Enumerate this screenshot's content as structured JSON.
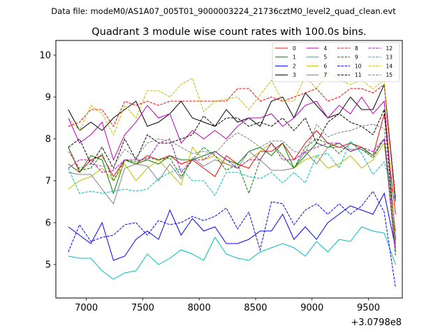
{
  "header": {
    "suptitle": "Data file: modeM0/AS1A07_005T01_9000003224_21736cztM0_level2_quad_clean.evt"
  },
  "chart_data": {
    "type": "line",
    "title": "Quadrant 3 module wise count rates with 100.0s bins.",
    "xlabel": "",
    "ylabel": "",
    "x_offset_label": "+3.0798e8",
    "x_offset": 307980000,
    "xlim": [
      6730,
      9800
    ],
    "ylim": [
      4.2,
      10.35
    ],
    "x_ticks": [
      7000,
      7500,
      8000,
      8500,
      9000,
      9500
    ],
    "x_tick_labels": [
      "7000",
      "7500",
      "8000",
      "8500",
      "9000",
      "9500"
    ],
    "y_ticks": [
      5,
      6,
      7,
      8,
      9,
      10
    ],
    "y_tick_labels": [
      "5",
      "6",
      "7",
      "8",
      "9",
      "10"
    ],
    "grid": false,
    "legend_position": "top-right",
    "legend_columns": 4,
    "x": [
      6840,
      6940,
      7040,
      7140,
      7240,
      7340,
      7440,
      7540,
      7640,
      7740,
      7840,
      7940,
      8040,
      8140,
      8240,
      8340,
      8440,
      8540,
      8640,
      8740,
      8840,
      8940,
      9040,
      9140,
      9240,
      9340,
      9440,
      9540,
      9640,
      9740
    ],
    "series": [
      {
        "name": "0",
        "color": "#ff0000",
        "dash": "solid",
        "values": [
          7.8,
          7.2,
          7.5,
          7.6,
          7.1,
          7.5,
          7.4,
          7.6,
          7.5,
          7.6,
          7.4,
          7.5,
          7.3,
          7.1,
          7.6,
          7.4,
          7.3,
          7.7,
          7.7,
          7.9,
          7.5,
          7.9,
          8.2,
          7.9,
          7.8,
          7.9,
          7.8,
          7.6,
          8.6,
          6.2
        ]
      },
      {
        "name": "1",
        "color": "#008000",
        "dash": "solid",
        "values": [
          7.4,
          7.2,
          7.6,
          7.5,
          6.7,
          7.5,
          7.4,
          7.5,
          7.4,
          7.6,
          7.5,
          7.5,
          7.6,
          7.7,
          7.5,
          7.4,
          7.7,
          7.8,
          7.6,
          7.9,
          7.3,
          7.6,
          7.9,
          7.8,
          7.9,
          7.7,
          7.8,
          7.6,
          8.0,
          5.3
        ]
      },
      {
        "name": "2",
        "color": "#0000ff",
        "dash": "solid",
        "values": [
          5.9,
          5.7,
          5.5,
          6.0,
          5.1,
          5.2,
          5.6,
          5.8,
          5.6,
          6.3,
          5.7,
          6.1,
          5.8,
          5.9,
          5.5,
          5.5,
          5.6,
          5.8,
          5.8,
          6.2,
          5.6,
          5.9,
          5.6,
          6.0,
          6.2,
          6.4,
          6.3,
          6.2,
          6.7,
          5.4
        ]
      },
      {
        "name": "3",
        "color": "#000000",
        "dash": "solid",
        "values": [
          8.7,
          8.2,
          8.4,
          8.2,
          8.5,
          8.7,
          8.9,
          8.3,
          8.4,
          8.6,
          8.9,
          8.5,
          8.4,
          8.3,
          8.7,
          8.4,
          8.5,
          8.3,
          8.9,
          9.0,
          8.5,
          9.1,
          8.8,
          8.5,
          8.6,
          9.0,
          8.7,
          8.7,
          9.3,
          6.5
        ]
      },
      {
        "name": "4",
        "color": "#bf00bf",
        "dash": "solid",
        "values": [
          8.5,
          7.9,
          8.1,
          8.4,
          7.5,
          8.1,
          8.4,
          8.8,
          8.5,
          8.6,
          7.9,
          8.2,
          8.0,
          8.2,
          8.0,
          8.3,
          8.5,
          8.5,
          8.6,
          8.3,
          8.5,
          8.8,
          8.9,
          8.5,
          8.8,
          8.6,
          9.0,
          8.6,
          8.9,
          5.6
        ]
      },
      {
        "name": "5",
        "color": "#00bfbf",
        "dash": "solid",
        "values": [
          5.2,
          5.15,
          5.15,
          4.85,
          4.65,
          4.8,
          4.85,
          5.25,
          5.0,
          5.15,
          5.35,
          5.25,
          5.1,
          5.65,
          5.25,
          5.15,
          5.1,
          5.3,
          5.4,
          5.5,
          5.4,
          5.2,
          5.55,
          5.3,
          5.6,
          5.55,
          5.9,
          5.8,
          5.75,
          5.0
        ]
      },
      {
        "name": "6",
        "color": "#bfbf00",
        "dash": "solid",
        "values": [
          6.8,
          7.0,
          7.1,
          7.3,
          7.0,
          7.4,
          7.0,
          7.3,
          7.5,
          7.2,
          6.9,
          7.8,
          7.5,
          7.6,
          7.4,
          7.3,
          7.5,
          7.7,
          7.9,
          7.6,
          7.3,
          7.5,
          7.6,
          7.3,
          7.4,
          7.6,
          7.3,
          7.5,
          7.9,
          5.5
        ]
      },
      {
        "name": "7",
        "color": "#808080",
        "dash": "solid",
        "values": [
          7.2,
          7.15,
          7.15,
          6.8,
          6.45,
          7.3,
          7.4,
          7.35,
          7.0,
          7.4,
          7.05,
          7.55,
          7.35,
          7.5,
          7.4,
          7.3,
          7.7,
          7.5,
          7.25,
          7.25,
          7.3,
          7.7,
          7.4,
          7.8,
          7.8,
          7.75,
          7.75,
          7.6,
          8.0,
          5.8
        ]
      },
      {
        "name": "8",
        "color": "#ff0000",
        "dash": "dashed",
        "values": [
          8.3,
          8.4,
          8.7,
          8.7,
          8.3,
          8.9,
          8.8,
          8.9,
          8.8,
          8.9,
          8.9,
          8.9,
          8.9,
          8.9,
          8.9,
          9.2,
          9.2,
          8.9,
          9.0,
          8.9,
          9.0,
          9.1,
          9.2,
          8.9,
          9.0,
          9.2,
          9.2,
          9.1,
          9.3,
          6.6
        ]
      },
      {
        "name": "9",
        "color": "#008000",
        "dash": "dashed",
        "values": [
          7.8,
          7.25,
          7.3,
          7.65,
          7.0,
          7.5,
          7.45,
          7.55,
          7.5,
          7.55,
          7.1,
          7.5,
          7.8,
          7.6,
          7.25,
          7.4,
          6.7,
          7.5,
          7.9,
          7.6,
          7.3,
          7.8,
          8.0,
          7.9,
          7.65,
          7.9,
          7.75,
          7.55,
          8.0,
          5.3
        ]
      },
      {
        "name": "10",
        "color": "#0000ff",
        "dash": "dashed",
        "values": [
          5.3,
          5.95,
          5.55,
          5.65,
          5.7,
          5.95,
          6.0,
          5.7,
          6.05,
          5.95,
          6.0,
          6.15,
          6.05,
          6.15,
          6.35,
          5.85,
          6.25,
          5.35,
          6.5,
          6.45,
          5.95,
          6.3,
          6.45,
          6.2,
          6.45,
          6.2,
          6.4,
          6.75,
          6.25,
          4.45
        ]
      },
      {
        "name": "11",
        "color": "#000000",
        "dash": "dashed",
        "values": [
          7.8,
          8.0,
          7.4,
          7.8,
          7.3,
          8.0,
          7.5,
          8.1,
          7.9,
          7.9,
          8.0,
          8.1,
          8.55,
          8.3,
          8.5,
          8.5,
          8.3,
          8.4,
          8.3,
          8.5,
          8.2,
          8.5,
          7.9,
          8.4,
          8.6,
          8.4,
          8.3,
          8.1,
          8.7,
          5.5
        ]
      },
      {
        "name": "12",
        "color": "#bf00bf",
        "dash": "dashed",
        "values": [
          7.3,
          7.5,
          7.5,
          7.2,
          7.25,
          7.5,
          7.5,
          7.5,
          7.9,
          8.0,
          7.2,
          7.5,
          7.5,
          7.7,
          7.5,
          7.3,
          7.5,
          7.5,
          7.9,
          7.5,
          7.5,
          7.7,
          7.8,
          7.9,
          7.9,
          7.7,
          7.8,
          7.7,
          8.0,
          5.2
        ]
      },
      {
        "name": "13",
        "color": "#00bfbf",
        "dash": "dashed",
        "values": [
          7.3,
          6.7,
          6.75,
          6.7,
          6.75,
          6.8,
          6.75,
          6.8,
          7.05,
          7.2,
          7.3,
          7.0,
          7.0,
          6.65,
          7.2,
          7.2,
          7.1,
          7.05,
          7.2,
          6.95,
          7.2,
          6.95,
          7.6,
          7.65,
          7.3,
          7.95,
          7.65,
          7.15,
          7.45,
          6.5
        ]
      },
      {
        "name": "14",
        "color": "#bfbf00",
        "dash": "dashed",
        "values": [
          8.5,
          8.2,
          8.8,
          8.6,
          8.1,
          8.8,
          8.5,
          9.15,
          9.15,
          9.0,
          9.3,
          9.45,
          8.65,
          8.9,
          8.95,
          9.0,
          8.7,
          9.05,
          9.4,
          8.9,
          8.9,
          9.5,
          9.2,
          9.6,
          9.4,
          9.3,
          9.4,
          9.2,
          9.4,
          5.4
        ]
      },
      {
        "name": "15",
        "color": "#808080",
        "dash": "dashed",
        "values": [
          7.7,
          7.3,
          7.4,
          7.35,
          7.35,
          7.75,
          7.55,
          7.9,
          8.0,
          7.95,
          7.8,
          7.65,
          7.7,
          7.65,
          7.95,
          8.15,
          8.0,
          7.8,
          7.95,
          7.95,
          7.7,
          7.65,
          8.35,
          8.05,
          8.15,
          8.2,
          8.3,
          8.35,
          8.25,
          5.4
        ]
      }
    ]
  }
}
